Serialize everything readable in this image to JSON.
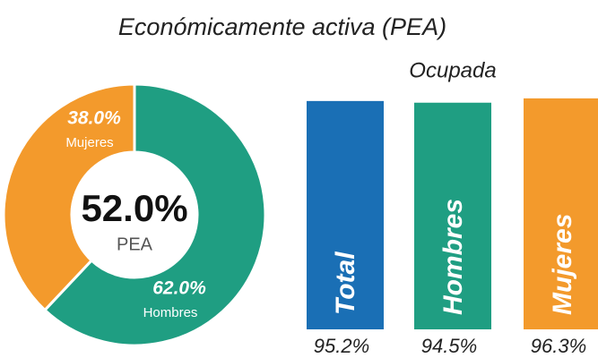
{
  "title": "Económicamente activa (PEA)",
  "chart_data": [
    {
      "type": "pie",
      "donut": true,
      "categories": [
        "Mujeres",
        "Hombres"
      ],
      "values": [
        38.0,
        62.0
      ],
      "value_labels": [
        "38.0%",
        "62.0%"
      ],
      "colors": [
        "#f39a2c",
        "#1f9e82"
      ],
      "center_label": "52.0%",
      "center_text": "PEA"
    },
    {
      "type": "bar",
      "title": "Ocupada",
      "categories": [
        "Total",
        "Hombres",
        "Mujeres"
      ],
      "values": [
        95.2,
        94.5,
        96.3
      ],
      "value_labels": [
        "95.2%",
        "94.5%",
        "96.3%"
      ],
      "colors": [
        "#1a6fb5",
        "#1f9e82",
        "#f39a2c"
      ],
      "ylim": [
        0,
        100
      ]
    }
  ]
}
